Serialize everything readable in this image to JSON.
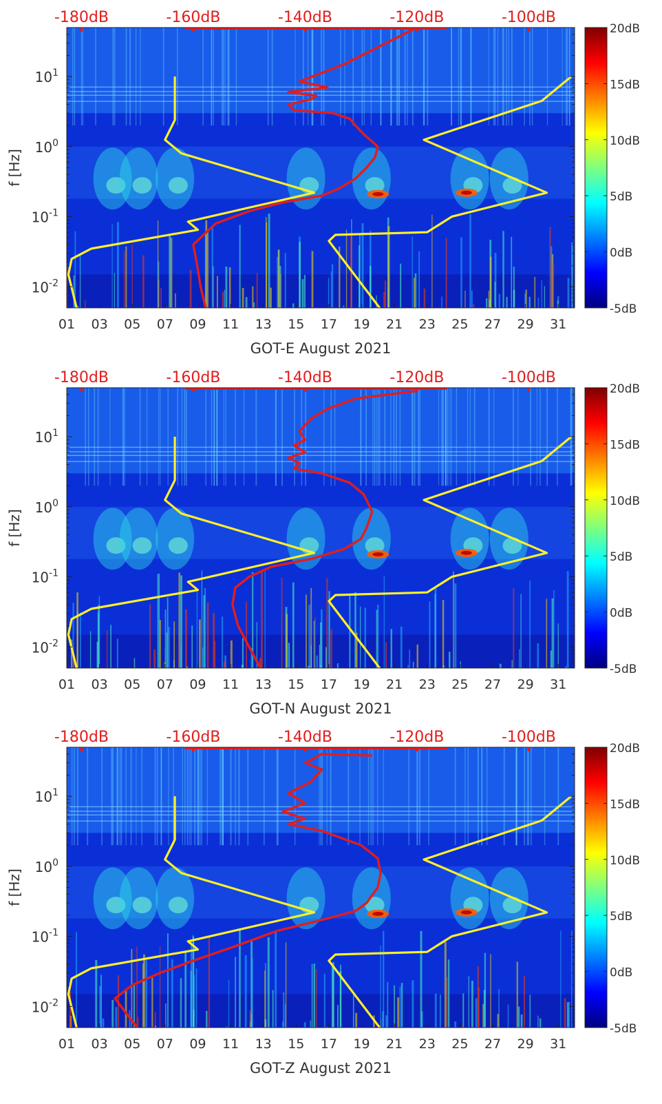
{
  "colors": {
    "red_curve": "#e11d1d",
    "yellow_curve": "#ffef2a",
    "top_label": "#e11d1d",
    "axis_text": "#333333"
  },
  "colormap": [
    "#00007f",
    "#0000ff",
    "#007fff",
    "#00ffff",
    "#7fff7f",
    "#ffff00",
    "#ff7f00",
    "#ff0000",
    "#7f0000"
  ],
  "chart_data": [
    {
      "type": "heatmap",
      "title": "",
      "xlabel": "GOT-E August 2021",
      "ylabel": "f [Hz]",
      "x_ticks": [
        "01",
        "03",
        "05",
        "07",
        "09",
        "11",
        "13",
        "15",
        "17",
        "19",
        "21",
        "23",
        "25",
        "27",
        "29",
        "31"
      ],
      "x_range_days": [
        1,
        32
      ],
      "y_scale": "log",
      "y_range_hz": [
        0.005,
        50
      ],
      "y_ticks": [
        {
          "value": 0.01,
          "base": "10",
          "exp": "-2"
        },
        {
          "value": 0.1,
          "base": "10",
          "exp": "-1"
        },
        {
          "value": 1,
          "base": "10",
          "exp": "0"
        },
        {
          "value": 10,
          "base": "10",
          "exp": "1"
        }
      ],
      "top_axis_labels": [
        "-180dB",
        "-160dB",
        "-140dB",
        "-120dB",
        "-100dB"
      ],
      "top_axis_values_db": [
        -180,
        -160,
        -140,
        -120,
        -100
      ],
      "colorbar_labels": [
        "20dB",
        "15dB",
        "10dB",
        "5dB",
        "0dB",
        "-5dB"
      ],
      "colorbar_values_db": [
        20,
        15,
        10,
        5,
        0,
        -5
      ],
      "red_curve": {
        "x_db": [
          -157.8,
          -158.7,
          -159.3,
          -160,
          -156,
          -150,
          -144,
          -137,
          -134,
          -131,
          -129,
          -127.5,
          -127,
          -129.5,
          -131,
          -132,
          -135,
          -142,
          -143,
          -139,
          -138,
          -143,
          -136,
          -141,
          -133,
          -120
        ],
        "f_hz": [
          0.005,
          0.01,
          0.02,
          0.04,
          0.08,
          0.12,
          0.16,
          0.2,
          0.25,
          0.35,
          0.5,
          0.7,
          1.0,
          1.5,
          2.0,
          2.5,
          3.0,
          3.3,
          4.0,
          4.7,
          5.3,
          6.0,
          7.0,
          8.5,
          15,
          50
        ]
      },
      "yellow_curves": [
        {
          "x_day": [
            1.6,
            1.1,
            1.3,
            2.5,
            9.0,
            8.4,
            16.1,
            8.0,
            7.0,
            7.6,
            7.6,
            7.6
          ],
          "f_hz": [
            0.005,
            0.015,
            0.025,
            0.035,
            0.065,
            0.085,
            0.22,
            0.8,
            1.25,
            2.4,
            5.5,
            10
          ]
        },
        {
          "x_day": [
            20.1,
            17.0,
            17.4,
            23.0,
            24.5,
            30.3,
            22.8,
            30.0,
            31.8
          ],
          "f_hz": [
            0.005,
            0.045,
            0.055,
            0.06,
            0.1,
            0.22,
            1.25,
            4.5,
            10
          ]
        }
      ]
    },
    {
      "type": "heatmap",
      "title": "",
      "xlabel": "GOT-N August 2021",
      "ylabel": "f [Hz]",
      "x_ticks": [
        "01",
        "03",
        "05",
        "07",
        "09",
        "11",
        "13",
        "15",
        "17",
        "19",
        "21",
        "23",
        "25",
        "27",
        "29",
        "31"
      ],
      "x_range_days": [
        1,
        32
      ],
      "y_scale": "log",
      "y_range_hz": [
        0.005,
        50
      ],
      "y_ticks": [
        {
          "value": 0.01,
          "base": "10",
          "exp": "-2"
        },
        {
          "value": 0.1,
          "base": "10",
          "exp": "-1"
        },
        {
          "value": 1,
          "base": "10",
          "exp": "0"
        },
        {
          "value": 10,
          "base": "10",
          "exp": "1"
        }
      ],
      "top_axis_labels": [
        "-180dB",
        "-160dB",
        "-140dB",
        "-120dB",
        "-100dB"
      ],
      "top_axis_values_db": [
        -180,
        -160,
        -140,
        -120,
        -100
      ],
      "colorbar_labels": [
        "20dB",
        "15dB",
        "10dB",
        "5dB",
        "0dB",
        "-5dB"
      ],
      "colorbar_values_db": [
        20,
        15,
        10,
        5,
        0,
        -5
      ],
      "red_curve": {
        "x_db": [
          -148,
          -150,
          -152,
          -153,
          -152.5,
          -150,
          -146,
          -139,
          -133,
          -130,
          -129,
          -128,
          -129.5,
          -132,
          -137,
          -142,
          -141,
          -143,
          -140,
          -142,
          -140,
          -141,
          -139,
          -136,
          -131,
          -120
        ],
        "f_hz": [
          0.005,
          0.01,
          0.02,
          0.04,
          0.07,
          0.1,
          0.14,
          0.18,
          0.25,
          0.35,
          0.5,
          0.85,
          1.5,
          2.2,
          3.0,
          3.5,
          4.2,
          5.0,
          6.0,
          7.5,
          9.0,
          12,
          18,
          25,
          35,
          45
        ]
      },
      "yellow_curves": [
        {
          "x_day": [
            1.6,
            1.1,
            1.3,
            2.5,
            9.0,
            8.4,
            16.1,
            8.0,
            7.0,
            7.6,
            7.6,
            7.6
          ],
          "f_hz": [
            0.005,
            0.015,
            0.025,
            0.035,
            0.065,
            0.085,
            0.22,
            0.8,
            1.25,
            2.4,
            5.5,
            10
          ]
        },
        {
          "x_day": [
            20.1,
            17.0,
            17.4,
            23.0,
            24.5,
            30.3,
            22.8,
            30.0,
            31.8
          ],
          "f_hz": [
            0.005,
            0.045,
            0.055,
            0.06,
            0.1,
            0.22,
            1.25,
            4.5,
            10
          ]
        }
      ]
    },
    {
      "type": "heatmap",
      "title": "",
      "xlabel": "GOT-Z August 2021",
      "ylabel": "f [Hz]",
      "x_ticks": [
        "01",
        "03",
        "05",
        "07",
        "09",
        "11",
        "13",
        "15",
        "17",
        "19",
        "21",
        "23",
        "25",
        "27",
        "29",
        "31"
      ],
      "x_range_days": [
        1,
        32
      ],
      "y_scale": "log",
      "y_range_hz": [
        0.005,
        50
      ],
      "y_ticks": [
        {
          "value": 0.01,
          "base": "10",
          "exp": "-2"
        },
        {
          "value": 0.1,
          "base": "10",
          "exp": "-1"
        },
        {
          "value": 1,
          "base": "10",
          "exp": "0"
        },
        {
          "value": 10,
          "base": "10",
          "exp": "1"
        }
      ],
      "top_axis_labels": [
        "-180dB",
        "-160dB",
        "-140dB",
        "-120dB",
        "-100dB"
      ],
      "top_axis_values_db": [
        -180,
        -160,
        -140,
        -120,
        -100
      ],
      "colorbar_labels": [
        "20dB",
        "15dB",
        "10dB",
        "5dB",
        "0dB",
        "-5dB"
      ],
      "colorbar_values_db": [
        20,
        15,
        10,
        5,
        0,
        -5
      ],
      "red_curve": {
        "x_db": [
          -170,
          -172,
          -174,
          -171,
          -166,
          -160,
          -153,
          -145,
          -136,
          -131,
          -129,
          -127,
          -126.5,
          -127,
          -130,
          -137,
          -143,
          -140,
          -144,
          -140,
          -143,
          -139,
          -137,
          -140,
          -137,
          -128
        ],
        "f_hz": [
          0.005,
          0.008,
          0.013,
          0.02,
          0.03,
          0.045,
          0.07,
          0.12,
          0.18,
          0.23,
          0.3,
          0.5,
          0.8,
          1.3,
          2.0,
          3.2,
          4.0,
          4.8,
          6.0,
          8.0,
          11,
          16,
          24,
          30,
          40,
          38
        ]
      },
      "yellow_curves": [
        {
          "x_day": [
            1.6,
            1.1,
            1.3,
            2.5,
            9.0,
            8.4,
            16.1,
            8.0,
            7.0,
            7.6,
            7.6,
            7.6
          ],
          "f_hz": [
            0.005,
            0.015,
            0.025,
            0.035,
            0.065,
            0.085,
            0.22,
            0.8,
            1.25,
            2.4,
            5.5,
            10
          ]
        },
        {
          "x_day": [
            20.1,
            17.0,
            17.4,
            23.0,
            24.5,
            30.3,
            22.8,
            30.0,
            31.8
          ],
          "f_hz": [
            0.005,
            0.045,
            0.055,
            0.06,
            0.1,
            0.22,
            1.25,
            4.5,
            10
          ]
        }
      ]
    }
  ]
}
